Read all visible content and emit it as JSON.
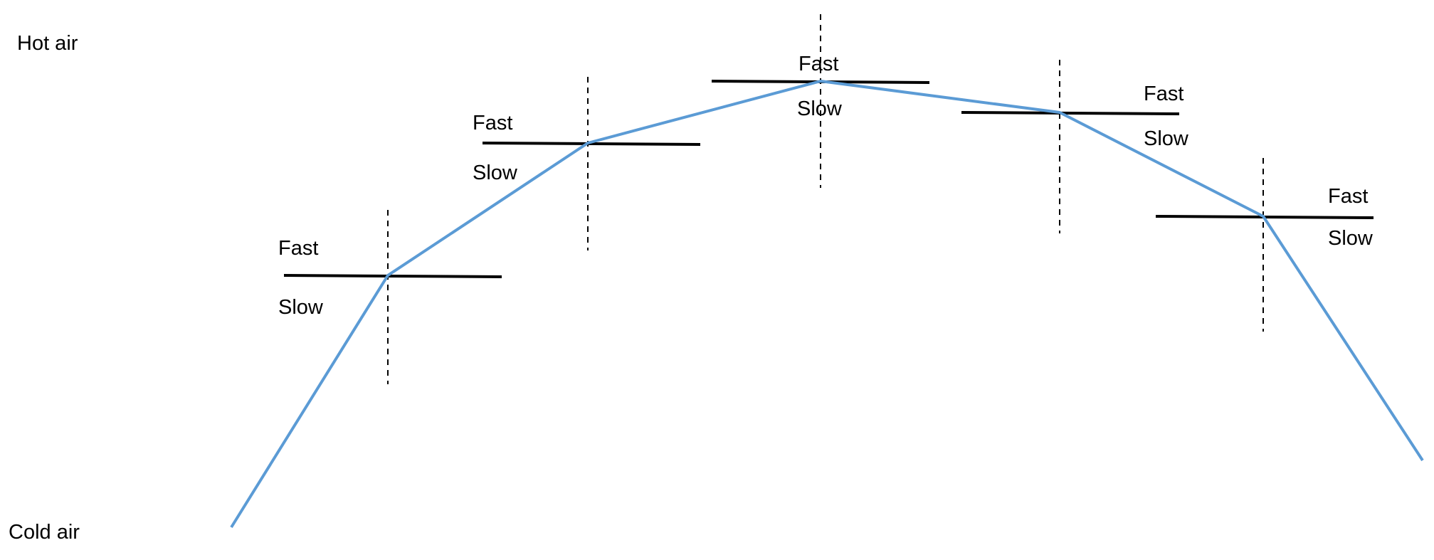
{
  "labels": {
    "top": "Hot air",
    "bottom": "Cold air"
  },
  "markers": [
    {
      "fast": "Fast",
      "slow": "Slow"
    },
    {
      "fast": "Fast",
      "slow": "Slow"
    },
    {
      "fast": "Fast",
      "slow": "Slow"
    },
    {
      "fast": "Fast",
      "slow": "Slow"
    },
    {
      "fast": "Fast",
      "slow": "Slow"
    }
  ],
  "colors": {
    "curve": "#5b9bd5",
    "bar": "#000000",
    "guide": "#000000",
    "text": "#000000"
  }
}
